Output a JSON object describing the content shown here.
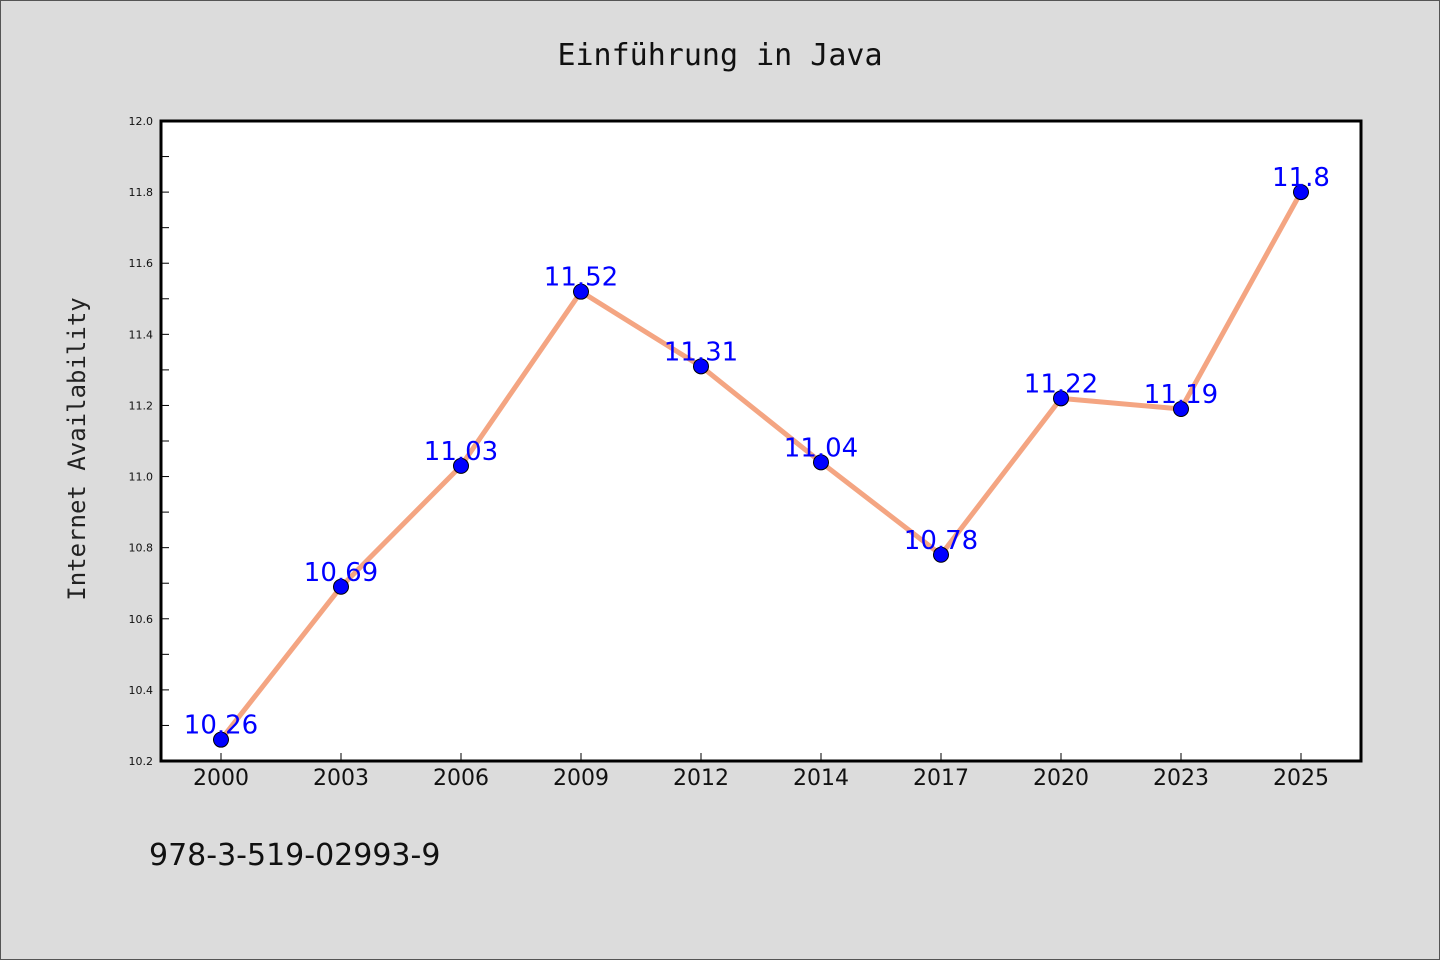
{
  "chart_data": {
    "type": "line",
    "title": "Einführung in Java",
    "xlabel": "",
    "ylabel": "Internet Availability",
    "categories": [
      "2000",
      "2003",
      "2006",
      "2009",
      "2012",
      "2014",
      "2017",
      "2020",
      "2023",
      "2025"
    ],
    "values": [
      10.26,
      10.69,
      11.03,
      11.52,
      11.31,
      11.04,
      10.78,
      11.22,
      11.19,
      11.8
    ],
    "data_labels": [
      "10.26",
      "10.69",
      "11.03",
      "11.52",
      "11.31",
      "11.04",
      "10.78",
      "11.22",
      "11.19",
      "11.8"
    ],
    "ylim": [
      10.2,
      12.0
    ],
    "yticks": [
      "10.2",
      "10.4",
      "10.6",
      "10.8",
      "11.0",
      "11.2",
      "11.4",
      "11.6",
      "11.8",
      "12.0"
    ],
    "grid": false,
    "line_color": "#f4a582",
    "marker_color": "#0000ff"
  },
  "footer": {
    "isbn": "978-3-519-02993-9"
  }
}
